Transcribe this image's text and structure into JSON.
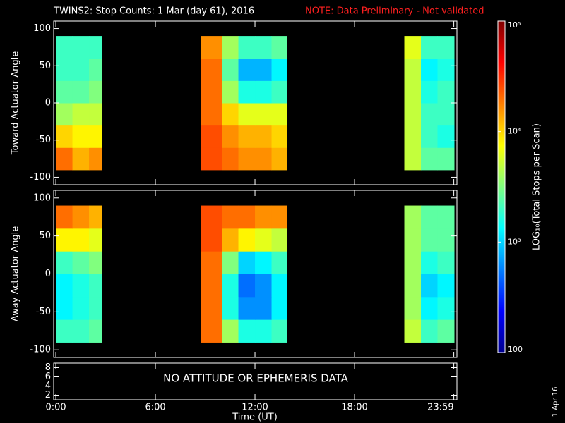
{
  "title": "TWINS2: Stop Counts:  1 Mar (day  61), 2016",
  "note": "NOTE: Data Preliminary - Not validated",
  "xlabel": "Time (UT)",
  "stamp": "1 Apr 16",
  "xlim": [
    -0.13,
    24.17
  ],
  "xticks": [
    {
      "value": 0,
      "label": "0:00"
    },
    {
      "value": 6,
      "label": "6:00"
    },
    {
      "value": 12,
      "label": "12:00"
    },
    {
      "value": 18,
      "label": "18:00"
    },
    {
      "value": 23.983,
      "label": "23:59"
    }
  ],
  "colorbar": {
    "label": "LOG₁₀(Total Stops per Scan)",
    "scale": "log",
    "lim": [
      100,
      100000
    ],
    "ticks": [
      {
        "value": 100000,
        "label": "10⁵"
      },
      {
        "value": 10000,
        "label": "10⁴"
      },
      {
        "value": 1000,
        "label": "10³"
      },
      100
    ]
  },
  "chart_data": [
    {
      "type": "heatmap",
      "ylabel": "Toward Actuator Angle",
      "ylim": [
        -110,
        110
      ],
      "yticks": [
        100,
        50,
        0,
        -50,
        -100
      ],
      "xbins": [
        0,
        1,
        2,
        2.75,
        8.75,
        10,
        11,
        12,
        13,
        13.9,
        21,
        22,
        23,
        24
      ],
      "ybins": [
        -90,
        -60,
        -30,
        0,
        30,
        60,
        90
      ],
      "values": [
        [
          20000,
          12600,
          16000,
          null,
          25000,
          20000,
          16000,
          16000,
          12600,
          null,
          5000,
          2500,
          2500
        ],
        [
          10000,
          8000,
          8000,
          null,
          25000,
          16000,
          12600,
          12600,
          10000,
          null,
          5000,
          2000,
          1600
        ],
        [
          4000,
          5000,
          5000,
          null,
          20000,
          10000,
          6300,
          6300,
          6300,
          null,
          5000,
          2000,
          2000
        ],
        [
          2500,
          2500,
          3200,
          null,
          20000,
          4000,
          1600,
          1600,
          2000,
          null,
          5000,
          1600,
          2000
        ],
        [
          2000,
          2000,
          2500,
          null,
          20000,
          2500,
          800,
          800,
          1260,
          null,
          5000,
          1260,
          1600
        ],
        [
          2000,
          2000,
          2000,
          null,
          16000,
          4000,
          2000,
          2000,
          2500,
          null,
          6300,
          2000,
          2000
        ]
      ]
    },
    {
      "type": "heatmap",
      "ylabel": "Away Actuator Angle",
      "ylim": [
        -110,
        110
      ],
      "yticks": [
        100,
        50,
        0,
        -50,
        -100
      ],
      "xbins": [
        0,
        1,
        2,
        2.75,
        8.75,
        10,
        11,
        12,
        13,
        13.9,
        21,
        22,
        23,
        24
      ],
      "ybins": [
        -90,
        -60,
        -30,
        0,
        30,
        60,
        90
      ],
      "values": [
        [
          2000,
          2000,
          2500,
          null,
          20000,
          4000,
          1600,
          1600,
          2000,
          null,
          5000,
          2000,
          2500
        ],
        [
          1260,
          1600,
          2000,
          null,
          20000,
          1600,
          630,
          630,
          1260,
          null,
          4000,
          1260,
          1600
        ],
        [
          1260,
          1600,
          2000,
          null,
          20000,
          1600,
          500,
          630,
          1260,
          null,
          4000,
          1000,
          1260
        ],
        [
          2000,
          2500,
          3200,
          null,
          20000,
          3200,
          1000,
          1260,
          2000,
          null,
          4000,
          1600,
          2000
        ],
        [
          8000,
          8000,
          6300,
          null,
          25000,
          12600,
          8000,
          6300,
          5000,
          null,
          4000,
          2500,
          2500
        ],
        [
          20000,
          16000,
          12600,
          null,
          25000,
          20000,
          20000,
          16000,
          16000,
          null,
          4000,
          2500,
          2500
        ]
      ]
    },
    {
      "type": "empty",
      "annotation": "NO ATTITUDE OR EPHEMERIS DATA",
      "ylim": [
        1,
        9
      ],
      "yticks": [
        8,
        6,
        4,
        2
      ]
    }
  ]
}
